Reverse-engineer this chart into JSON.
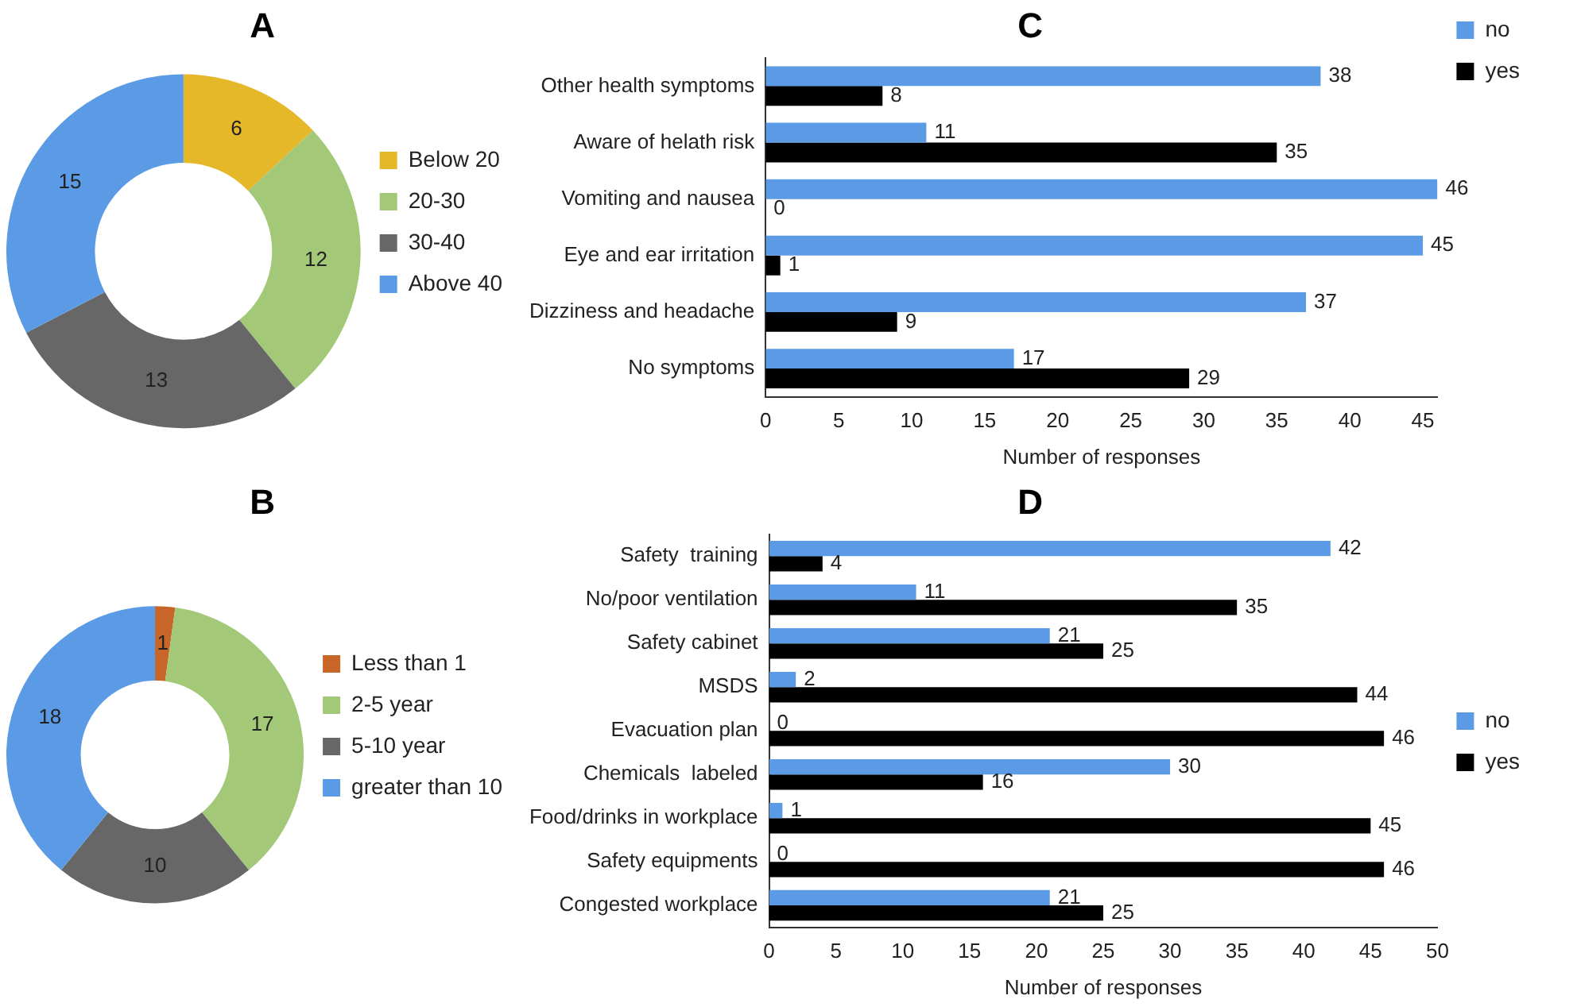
{
  "chart_data": [
    {
      "type": "donut",
      "title": "A",
      "categories": [
        "Below 20",
        "20-30",
        "30-40",
        "Above 40"
      ],
      "values": [
        6,
        12,
        13,
        15
      ],
      "colors": [
        "#e5b82a",
        "#a2c878",
        "#676767",
        "#5b9be5"
      ],
      "data_labels": true,
      "legend": "right"
    },
    {
      "type": "donut",
      "title": "B",
      "categories": [
        "Less than 1",
        "2-5 year",
        "5-10 year",
        "greater than 10"
      ],
      "values": [
        1,
        17,
        10,
        18
      ],
      "colors": [
        "#c8662a",
        "#a2c878",
        "#676767",
        "#5b9be5"
      ],
      "data_labels": true,
      "legend": "right"
    },
    {
      "type": "bar",
      "orientation": "horizontal",
      "title": "C",
      "xlabel": "Number of responses",
      "categories": [
        "Other health symptoms",
        "Aware of helath risk",
        "Vomiting and nausea",
        "Eye and ear irritation",
        "Dizziness and headache",
        "No symptoms"
      ],
      "series": [
        {
          "name": "no",
          "color": "#5b9be5",
          "values": [
            38,
            11,
            46,
            45,
            37,
            17
          ]
        },
        {
          "name": "yes",
          "color": "#000000",
          "values": [
            8,
            35,
            0,
            1,
            9,
            29
          ]
        }
      ],
      "xlim": [
        0,
        46
      ],
      "xticks": [
        0,
        5,
        10,
        15,
        20,
        25,
        30,
        35,
        40,
        45
      ],
      "grid": false,
      "legend": "top right",
      "data_labels": true
    },
    {
      "type": "bar",
      "orientation": "horizontal",
      "title": "D",
      "xlabel": "Number of responses",
      "categories": [
        "Safety  training",
        "No/poor ventilation",
        "Safety cabinet",
        "MSDS",
        "Evacuation plan",
        "Chemicals  labeled",
        "Food/drinks in workplace",
        "Safety equipments",
        "Congested workplace"
      ],
      "series": [
        {
          "name": "no",
          "color": "#5b9be5",
          "values": [
            42,
            11,
            21,
            2,
            0,
            30,
            1,
            0,
            21
          ]
        },
        {
          "name": "yes",
          "color": "#000000",
          "values": [
            4,
            35,
            25,
            44,
            46,
            16,
            45,
            46,
            25
          ]
        }
      ],
      "xlim": [
        0,
        50
      ],
      "xticks": [
        0,
        5,
        10,
        15,
        20,
        25,
        30,
        35,
        40,
        45,
        50
      ],
      "grid": false,
      "legend": "right",
      "data_labels": true
    }
  ]
}
